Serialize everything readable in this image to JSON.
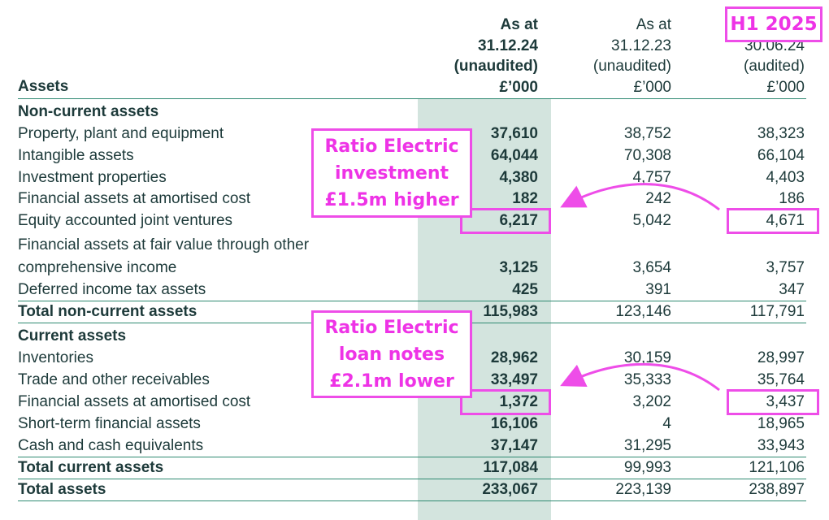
{
  "header": {
    "assets_label": "Assets",
    "col1": {
      "l1": "As at",
      "l2": "31.12.24",
      "l3": "(unaudited)",
      "l4": "£’000"
    },
    "col2": {
      "l1": "As at",
      "l2": "31.12.23",
      "l3": "(unaudited)",
      "l4": "£’000"
    },
    "col3": {
      "l2": "30.06.24",
      "l3": "(audited)",
      "l4": "£’000"
    }
  },
  "rows": {
    "ncsec": {
      "label": "Non-current assets"
    },
    "ppe": {
      "label": "Property, plant and equipment",
      "v1": "37,610",
      "v2": "38,752",
      "v3": "38,323"
    },
    "intang": {
      "label": "Intangible assets",
      "v1": "64,044",
      "v2": "70,308",
      "v3": "66,104"
    },
    "invprop": {
      "label": "Investment properties",
      "v1": "4,380",
      "v2": "4,757",
      "v3": "4,403"
    },
    "famort1": {
      "label": "Financial assets at amortised cost",
      "v1": "182",
      "v2": "242",
      "v3": "186"
    },
    "equity": {
      "label": "Equity accounted joint ventures",
      "v1": "6,217",
      "v2": "5,042",
      "v3": "4,671"
    },
    "fvoci1": {
      "label": "Financial assets at fair value through other"
    },
    "fvoci2": {
      "label": "comprehensive income",
      "v1": "3,125",
      "v2": "3,654",
      "v3": "3,757"
    },
    "deftax": {
      "label": "Deferred income tax assets",
      "v1": "425",
      "v2": "391",
      "v3": "347"
    },
    "totnc": {
      "label": "Total non-current assets",
      "v1": "115,983",
      "v2": "123,146",
      "v3": "117,791"
    },
    "csec": {
      "label": "Current assets"
    },
    "invent": {
      "label": "Inventories",
      "v1": "28,962",
      "v2": "30,159",
      "v3": "28,997"
    },
    "trade": {
      "label": "Trade and other receivables",
      "v1": "33,497",
      "v2": "35,333",
      "v3": "35,764"
    },
    "famort2": {
      "label": "Financial assets at amortised cost",
      "v1": "1,372",
      "v2": "3,202",
      "v3": "3,437"
    },
    "stfa": {
      "label": "Short-term financial assets",
      "v1": "16,106",
      "v2": "4",
      "v3": "18,965"
    },
    "cash": {
      "label": "Cash and cash equivalents",
      "v1": "37,147",
      "v2": "31,295",
      "v3": "33,943"
    },
    "totcur": {
      "label": "Total current assets",
      "v1": "117,084",
      "v2": "99,993",
      "v3": "121,106"
    },
    "totass": {
      "label": "Total assets",
      "v1": "233,067",
      "v2": "223,139",
      "v3": "238,897"
    }
  },
  "annotations": {
    "h1_tag": "H1 2025",
    "callout1": [
      "Ratio Electric",
      "investment",
      "£1.5m higher"
    ],
    "callout2": [
      "Ratio Electric",
      "loan notes",
      "£2.1m lower"
    ],
    "accent_color": "#ee4de8",
    "shade_color": "#d3e4de",
    "text_color": "#1d3a3a"
  }
}
